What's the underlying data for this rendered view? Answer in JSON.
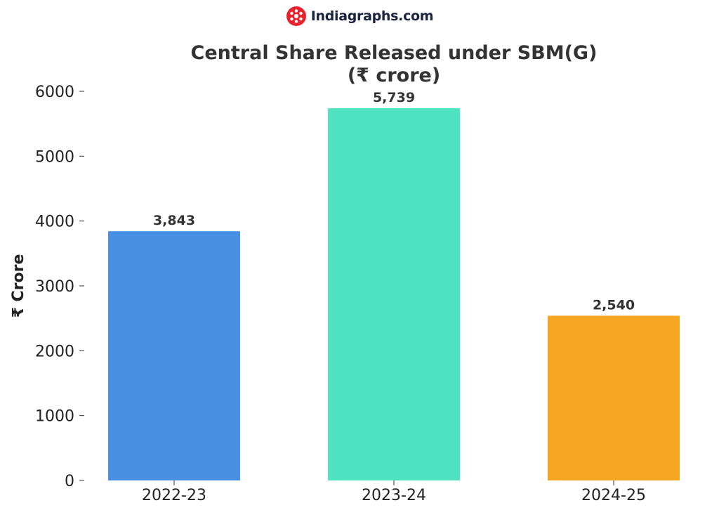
{
  "brand": {
    "name": "Indiagraphs.com",
    "logo_icon": "indiagraphs-logo-icon",
    "logo_color": "#e8232e"
  },
  "chart_data": {
    "type": "bar",
    "title_line1": "Central Share Released under SBM(G)",
    "title_line2": "(₹ crore)",
    "xlabel": "",
    "ylabel": "₹ Crore",
    "categories": [
      "2022-23",
      "2023-24",
      "2024-25"
    ],
    "values": [
      3843,
      5739,
      2540
    ],
    "value_labels": [
      "3,843",
      "5,739",
      "2,540"
    ],
    "colors": [
      "#4a90e2",
      "#50e3c2",
      "#f5a623"
    ],
    "ylim": [
      0,
      6000
    ],
    "yticks": [
      0,
      1000,
      2000,
      3000,
      4000,
      5000,
      6000
    ],
    "grid": false,
    "legend": "none"
  }
}
